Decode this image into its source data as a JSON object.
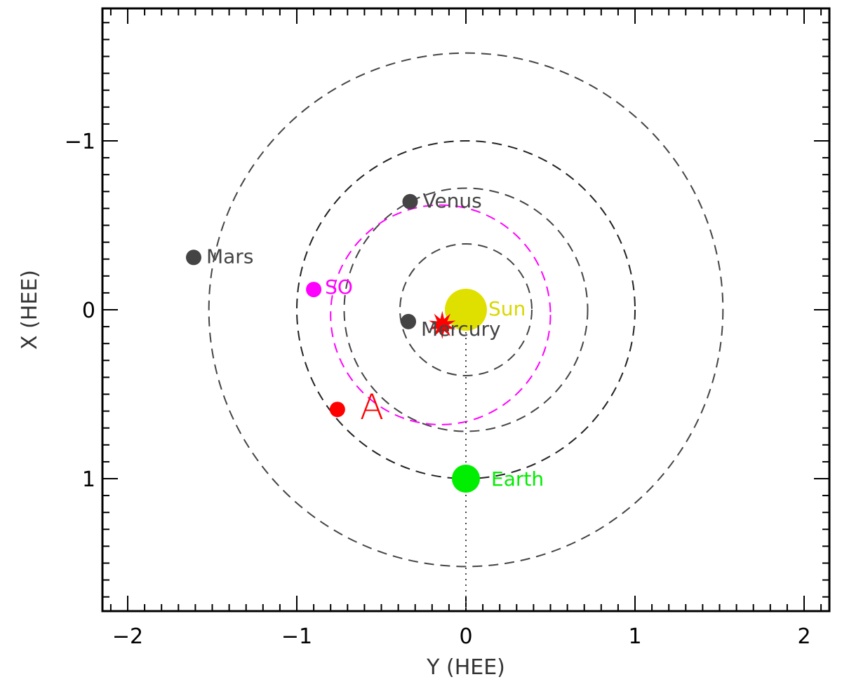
{
  "chart_data": {
    "type": "scatter",
    "title": "",
    "xlabel": "Y (HEE)",
    "ylabel": "X (HEE)",
    "xlim": [
      -2.2,
      2.2
    ],
    "ylim": [
      -1.8,
      1.78
    ],
    "y_inverted": true,
    "x_ticks": [
      -2,
      -1,
      0,
      1,
      2
    ],
    "y_ticks": [
      -1,
      0,
      1
    ],
    "x_tick_labels": [
      "−2",
      "−1",
      "0",
      "1",
      "2"
    ],
    "y_tick_labels": [
      "−1",
      "0",
      "1"
    ],
    "grid": false,
    "orbits": [
      {
        "name": "Mercury",
        "cx": 0.0,
        "cy": 0.0,
        "r": 0.39,
        "color": "#444444"
      },
      {
        "name": "Venus",
        "cx": 0.0,
        "cy": 0.0,
        "r": 0.72,
        "color": "#444444"
      },
      {
        "name": "Earth",
        "cx": 0.0,
        "cy": 0.0,
        "r": 1.0,
        "color": "#222222"
      },
      {
        "name": "SO",
        "cx": -0.15,
        "cy": 0.03,
        "r": 0.65,
        "color": "#ff00ff"
      },
      {
        "name": "Mars",
        "cx": 0.0,
        "cy": 0.0,
        "r": 1.52,
        "color": "#444444"
      }
    ],
    "sun_earth_line": {
      "from": [
        0.0,
        0.0
      ],
      "to": [
        0.0,
        1.78
      ],
      "color": "#444444"
    },
    "bodies": [
      {
        "name": "Sun",
        "label": "Sun",
        "y": 0.0,
        "x": 0.0,
        "size": 30,
        "color": "#e0e000",
        "label_color": "#d8d800"
      },
      {
        "name": "Mercury",
        "label": "Mercury",
        "y": -0.34,
        "x": 0.07,
        "size": 11,
        "color": "#444444",
        "label_color": "#444444"
      },
      {
        "name": "Venus",
        "label": "Venus",
        "y": -0.33,
        "x": -0.64,
        "size": 11,
        "color": "#444444",
        "label_color": "#444444"
      },
      {
        "name": "Earth",
        "label": "Earth",
        "y": 0.0,
        "x": 1.0,
        "size": 20,
        "color": "#00ee00",
        "label_color": "#00ee00"
      },
      {
        "name": "Mars",
        "label": "Mars",
        "y": -1.61,
        "x": -0.31,
        "size": 11,
        "color": "#444444",
        "label_color": "#444444"
      },
      {
        "name": "SO",
        "label": "SO",
        "y": -0.9,
        "x": -0.12,
        "size": 11,
        "color": "#ff00ff",
        "label_color": "#ff00ff"
      },
      {
        "name": "A",
        "label": "A",
        "y": -0.76,
        "x": 0.59,
        "size": 11,
        "color": "#ff0000",
        "label_color": "#ff0000"
      }
    ],
    "flare": {
      "y": -0.14,
      "x": 0.09,
      "color": "#ff0000"
    }
  }
}
